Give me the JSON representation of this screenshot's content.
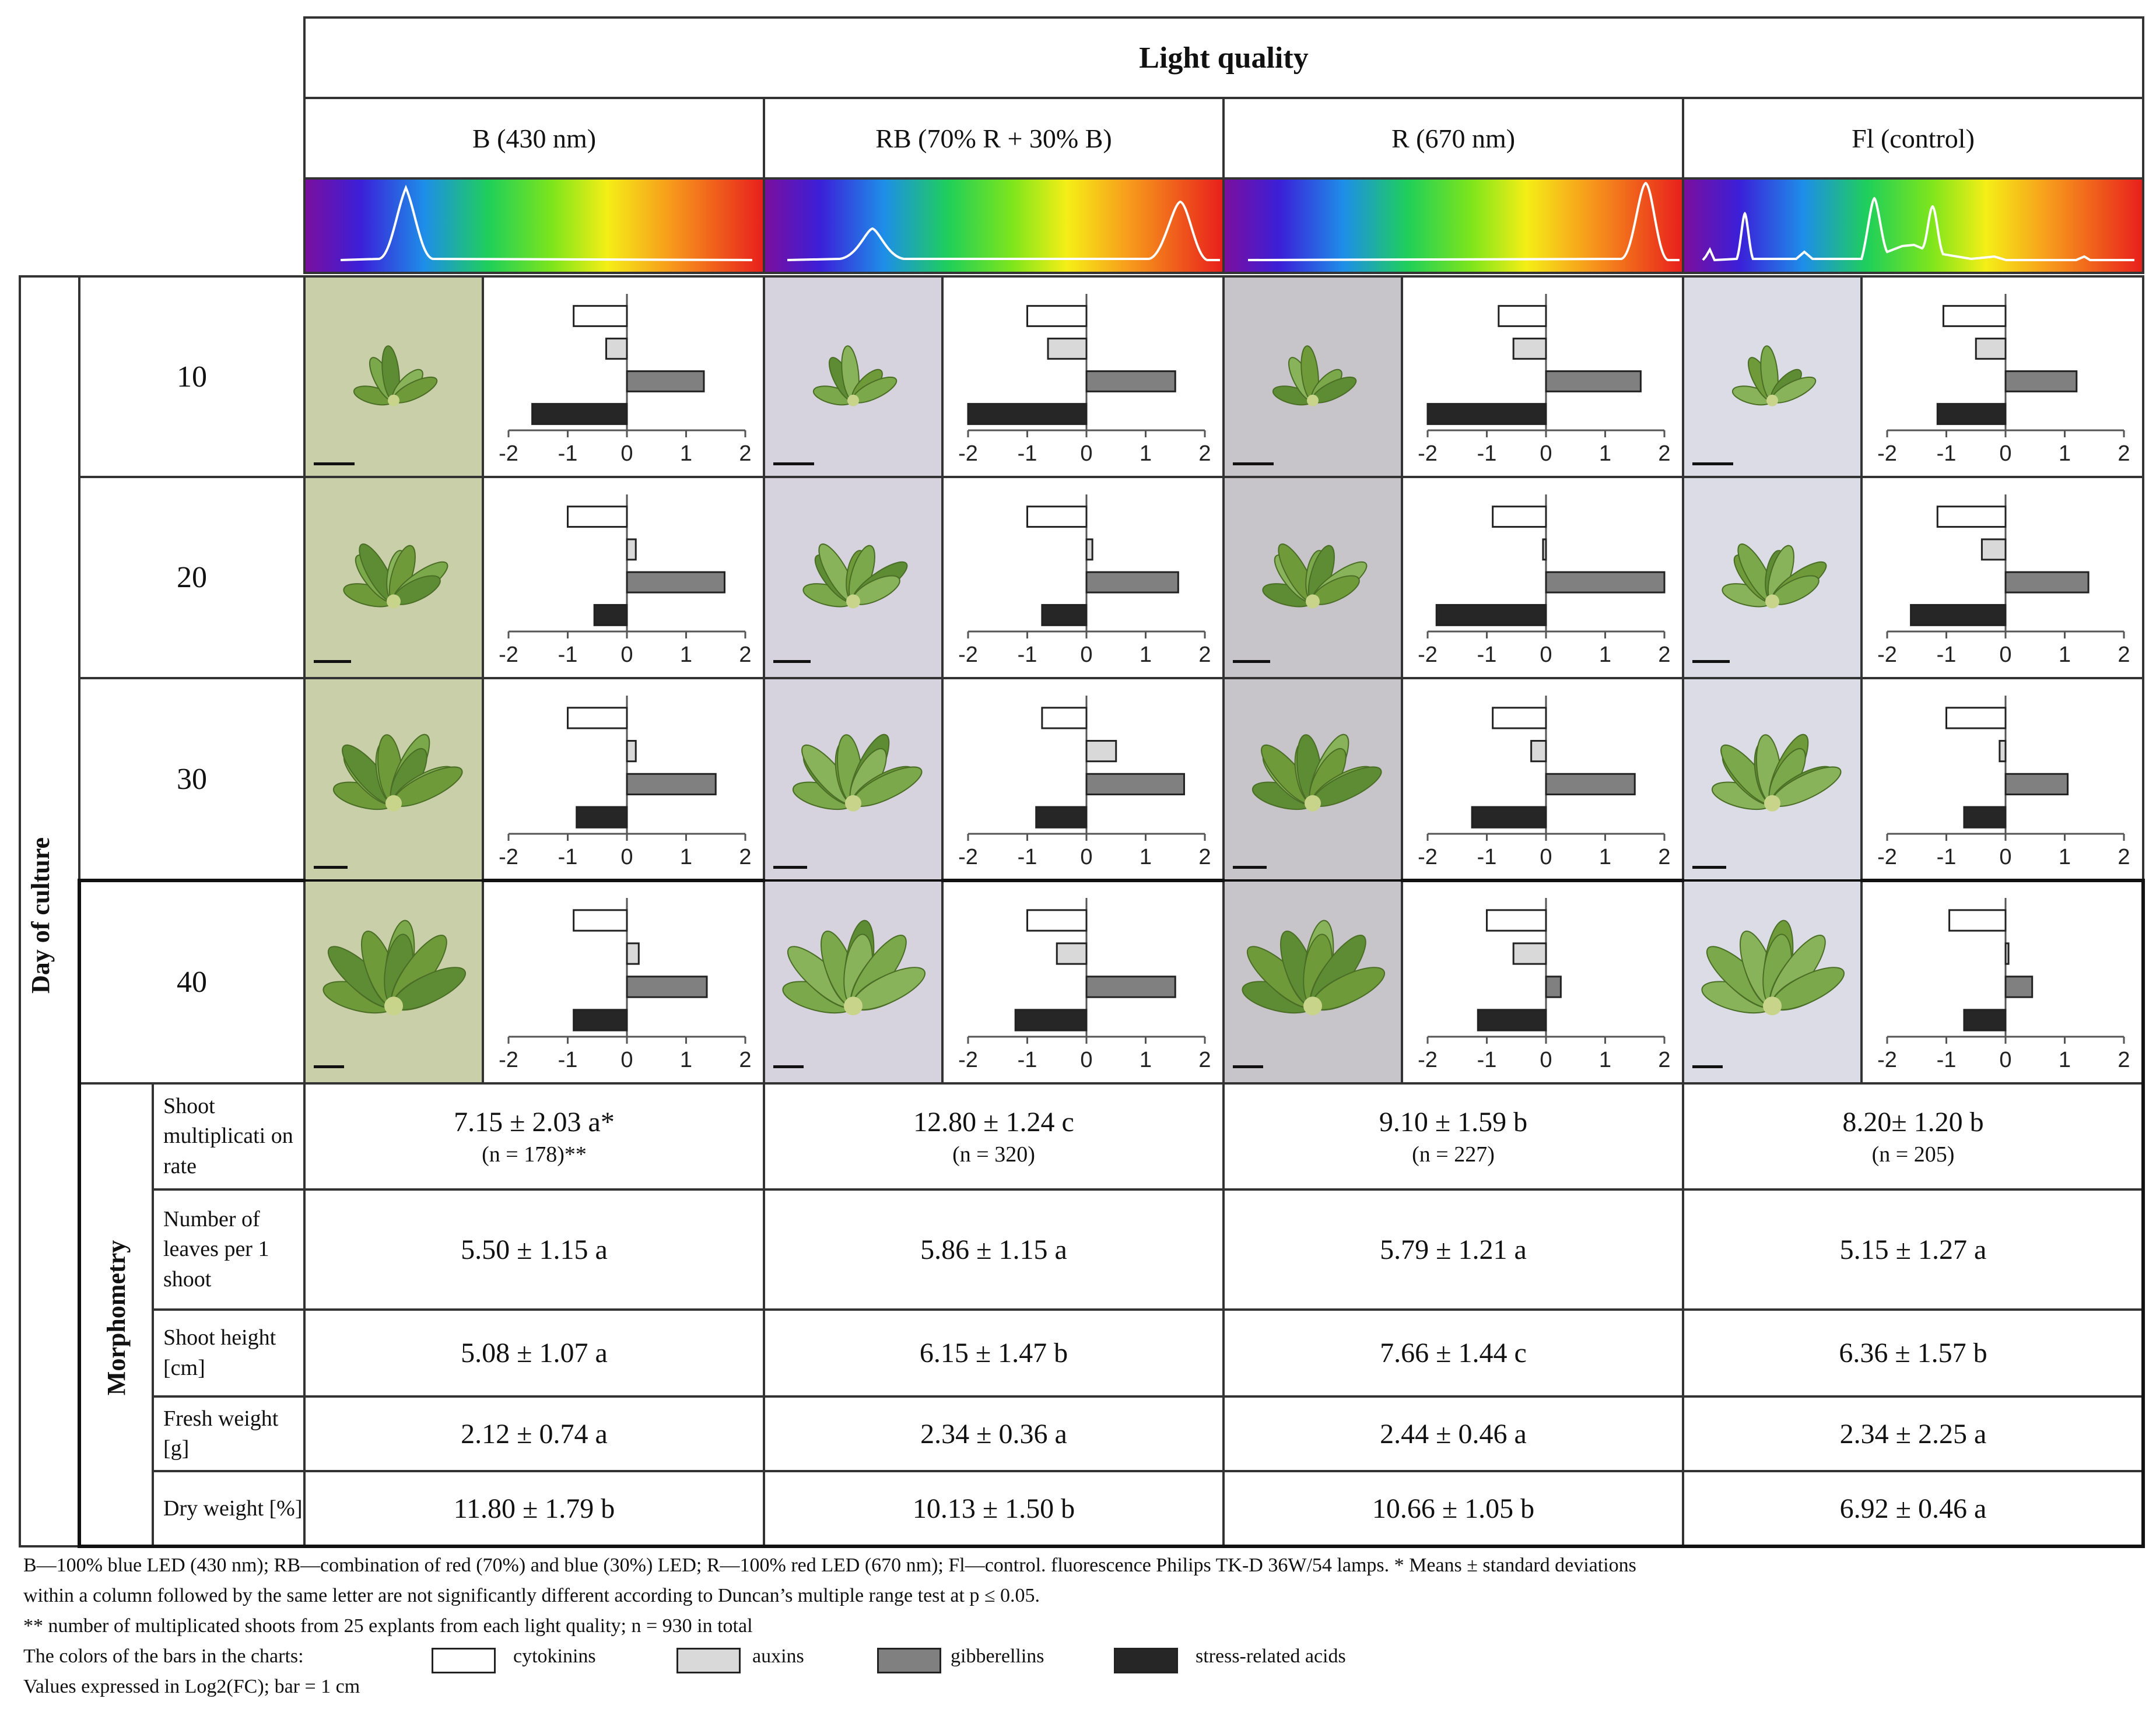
{
  "header": {
    "title": "Light quality",
    "columns": [
      {
        "label": "B (430 nm)"
      },
      {
        "label": "RB (70% R + 30% B)"
      },
      {
        "label": "R (670 nm)"
      },
      {
        "label": "Fl (control)"
      }
    ]
  },
  "side_labels": {
    "day_of_culture": "Day of culture",
    "morphometry": "Morphometry"
  },
  "days": [
    {
      "label": "10"
    },
    {
      "label": "20"
    },
    {
      "label": "30"
    },
    {
      "label": "40"
    }
  ],
  "chart_data": {
    "type": "bar",
    "orientation": "horizontal",
    "note": "Values expressed in Log2(FC)",
    "xlim": [
      -2,
      2
    ],
    "ticks": [
      "-2",
      "-1",
      "0",
      "1",
      "2"
    ],
    "series_names": [
      "cytokinins",
      "auxins",
      "gibberellins",
      "stress-related acids"
    ],
    "colors": [
      "#ffffff",
      "#d9d9d9",
      "#808080",
      "#262626"
    ],
    "charts": [
      {
        "day": "10",
        "light": "B (430 nm)",
        "values": [
          -0.9,
          -0.35,
          1.3,
          -1.6
        ]
      },
      {
        "day": "10",
        "light": "RB (70% R + 30% B)",
        "values": [
          -1.0,
          -0.65,
          1.5,
          -2.0
        ]
      },
      {
        "day": "10",
        "light": "R (670 nm)",
        "values": [
          -0.8,
          -0.55,
          1.6,
          -2.0
        ]
      },
      {
        "day": "10",
        "light": "Fl (control)",
        "values": [
          -1.05,
          -0.5,
          1.2,
          -1.15
        ]
      },
      {
        "day": "20",
        "light": "B (430 nm)",
        "values": [
          -1.0,
          0.15,
          1.65,
          -0.55
        ]
      },
      {
        "day": "20",
        "light": "RB (70% R + 30% B)",
        "values": [
          -1.0,
          0.1,
          1.55,
          -0.75
        ]
      },
      {
        "day": "20",
        "light": "R (670 nm)",
        "values": [
          -0.9,
          -0.05,
          2.0,
          -1.85
        ]
      },
      {
        "day": "20",
        "light": "Fl (control)",
        "values": [
          -1.15,
          -0.4,
          1.4,
          -1.6
        ]
      },
      {
        "day": "30",
        "light": "B (430 nm)",
        "values": [
          -1.0,
          0.15,
          1.5,
          -0.85
        ]
      },
      {
        "day": "30",
        "light": "RB (70% R + 30% B)",
        "values": [
          -0.75,
          0.5,
          1.65,
          -0.85
        ]
      },
      {
        "day": "30",
        "light": "R (670 nm)",
        "values": [
          -0.9,
          -0.25,
          1.5,
          -1.25
        ]
      },
      {
        "day": "30",
        "light": "Fl (control)",
        "values": [
          -1.0,
          -0.1,
          1.05,
          -0.7
        ]
      },
      {
        "day": "40",
        "light": "B (430 nm)",
        "values": [
          -0.9,
          0.2,
          1.35,
          -0.9
        ]
      },
      {
        "day": "40",
        "light": "RB (70% R + 30% B)",
        "values": [
          -1.0,
          -0.5,
          1.5,
          -1.2
        ]
      },
      {
        "day": "40",
        "light": "R (670 nm)",
        "values": [
          -1.0,
          -0.55,
          0.25,
          -1.15
        ]
      },
      {
        "day": "40",
        "light": "Fl (control)",
        "values": [
          -0.95,
          0.05,
          0.45,
          -0.7
        ]
      }
    ]
  },
  "morphometry": {
    "rows": [
      {
        "label": "Shoot multiplicati on rate",
        "values": [
          "7.15 ± 2.03 a*",
          "12.80 ± 1.24 c",
          "9.10 ± 1.59 b",
          "8.20± 1.20 b"
        ],
        "sub": [
          "(n = 178)**",
          "(n = 320)",
          "(n = 227)",
          "(n = 205)"
        ]
      },
      {
        "label": "Number of leaves per 1 shoot",
        "values": [
          "5.50 ± 1.15 a",
          "5.86 ± 1.15 a",
          "5.79 ± 1.21 a",
          "5.15 ± 1.27 a"
        ]
      },
      {
        "label": "Shoot height [cm]",
        "values": [
          "5.08 ± 1.07 a",
          "6.15 ± 1.47 b",
          "7.66 ± 1.44 c",
          "6.36 ± 1.57 b"
        ]
      },
      {
        "label": "Fresh weight [g]",
        "values": [
          "2.12 ± 0.74 a",
          "2.34 ± 0.36 a",
          "2.44 ± 0.46 a",
          "2.34 ± 2.25 a"
        ]
      },
      {
        "label": "Dry weight [%]",
        "values": [
          "11.80 ± 1.79 b",
          "10.13 ± 1.50 b",
          "10.66 ± 1.05 b",
          "6.92 ± 0.46 a"
        ]
      }
    ]
  },
  "footnotes": {
    "line1": "B—100% blue LED (430 nm); RB—combination of red (70%) and blue (30%) LED; R—100% red LED (670 nm); Fl—control. fluorescence Philips TK-D 36W/54 lamps. * Means ± standard deviations",
    "line2": "within a column followed by the same letter are not significantly different according to Duncan’s multiple range test at p ≤ 0.05.",
    "line3": "** number of multiplicated shoots from 25 explants from each light quality; n = 930 in total",
    "legend_intro": "The colors of the bars in the charts:",
    "legend_items": [
      "cytokinins",
      "auxins",
      "gibberellins",
      "stress-related acids"
    ],
    "line5": "Values expressed in Log2(FC); bar = 1 cm"
  },
  "photo_colors": [
    "#c9cfa8",
    "#d6d3de",
    "#c7c4ca",
    "#dcdce6"
  ]
}
